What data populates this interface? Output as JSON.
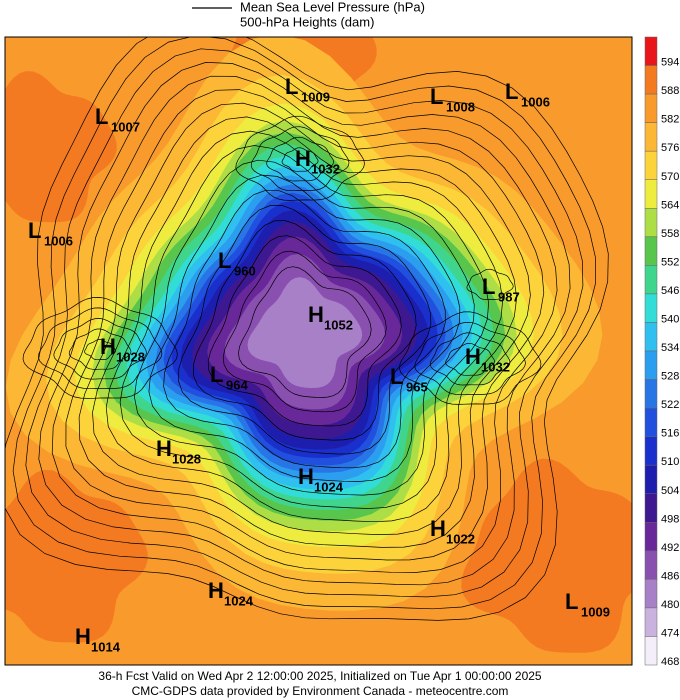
{
  "legend": {
    "pressure": "Mean Sea Level Pressure (hPa)",
    "heights": "500-hPa Heights (dam)"
  },
  "colorbar": [
    {
      "value": 594,
      "color": "#e8151b"
    },
    {
      "value": 588,
      "color": "#f47a22"
    },
    {
      "value": 582,
      "color": "#f89a2c"
    },
    {
      "value": 576,
      "color": "#fcb734"
    },
    {
      "value": 570,
      "color": "#fdd33b"
    },
    {
      "value": 564,
      "color": "#eeec3f"
    },
    {
      "value": 558,
      "color": "#aede46"
    },
    {
      "value": 552,
      "color": "#58c64c"
    },
    {
      "value": 546,
      "color": "#40d58d"
    },
    {
      "value": 540,
      "color": "#31ddd6"
    },
    {
      "value": 534,
      "color": "#30c0f0"
    },
    {
      "value": 528,
      "color": "#2c9ef0"
    },
    {
      "value": 522,
      "color": "#2876e6"
    },
    {
      "value": 516,
      "color": "#2050dd"
    },
    {
      "value": 510,
      "color": "#1a30cc"
    },
    {
      "value": 504,
      "color": "#1e1eae"
    },
    {
      "value": 498,
      "color": "#3e1890"
    },
    {
      "value": 492,
      "color": "#68289a"
    },
    {
      "value": 486,
      "color": "#8a50b0"
    },
    {
      "value": 480,
      "color": "#a880c8"
    },
    {
      "value": 474,
      "color": "#c9b2de"
    },
    {
      "value": 468,
      "color": "#f4eefa"
    }
  ],
  "centers": [
    {
      "kind": "L",
      "value": 1009
    },
    {
      "kind": "L",
      "value": 1008
    },
    {
      "kind": "L",
      "value": 1006
    },
    {
      "kind": "L",
      "value": 1007
    },
    {
      "kind": "H",
      "value": 1032
    },
    {
      "kind": "L",
      "value": 1006
    },
    {
      "kind": "L",
      "value": 960
    },
    {
      "kind": "L",
      "value": 987
    },
    {
      "kind": "H",
      "value": 1052
    },
    {
      "kind": "H",
      "value": 1028
    },
    {
      "kind": "H",
      "value": 1032
    },
    {
      "kind": "L",
      "value": 964
    },
    {
      "kind": "L",
      "value": 965
    },
    {
      "kind": "H",
      "value": 1028
    },
    {
      "kind": "H",
      "value": 1024
    },
    {
      "kind": "H",
      "value": 1022
    },
    {
      "kind": "H",
      "value": 1024
    },
    {
      "kind": "L",
      "value": 1009
    },
    {
      "kind": "H",
      "value": 1014
    }
  ],
  "footer": {
    "line1": "36-h Fcst Valid on Wed Apr  2 12:00:00 2025, Initialized on Tue Apr  1 00:00:00 2025",
    "line2": "CMC-GDPS data provided by Environment Canada - meteocentre.com"
  }
}
